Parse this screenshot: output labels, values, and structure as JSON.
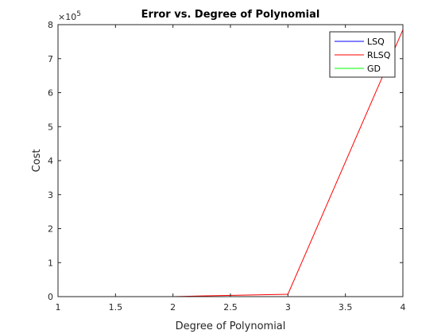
{
  "chart_data": {
    "type": "line",
    "title": "Error vs. Degree of Polynomial",
    "xlabel": "Degree of Polynomial",
    "ylabel": "Cost",
    "xlim": [
      1,
      4
    ],
    "ylim": [
      0,
      8
    ],
    "x_ticks": [
      "1",
      "1.5",
      "2",
      "2.5",
      "3",
      "3.5",
      "4"
    ],
    "x_tick_values": [
      1,
      1.5,
      2,
      2.5,
      3,
      3.5,
      4
    ],
    "y_ticks": [
      "0",
      "1",
      "2",
      "3",
      "4",
      "5",
      "6",
      "7",
      "8"
    ],
    "y_tick_values": [
      0,
      1,
      2,
      3,
      4,
      5,
      6,
      7,
      8
    ],
    "y_exponent_base": "×10",
    "y_exponent_power": "5",
    "grid": false,
    "legend_position": "top-right",
    "series": [
      {
        "name": "LSQ",
        "color": "#0000ff",
        "x": [
          1,
          2,
          3,
          4
        ],
        "y": [
          0,
          0,
          0,
          0
        ]
      },
      {
        "name": "RLSQ",
        "color": "#ff0000",
        "x": [
          1,
          2,
          2.25,
          3,
          4
        ],
        "y": [
          0,
          0,
          0.02,
          0.07,
          7.85
        ]
      },
      {
        "name": "GD",
        "color": "#00ff00",
        "x": [
          1,
          2,
          3,
          4
        ],
        "y": [
          0,
          0,
          0,
          0
        ]
      }
    ]
  }
}
